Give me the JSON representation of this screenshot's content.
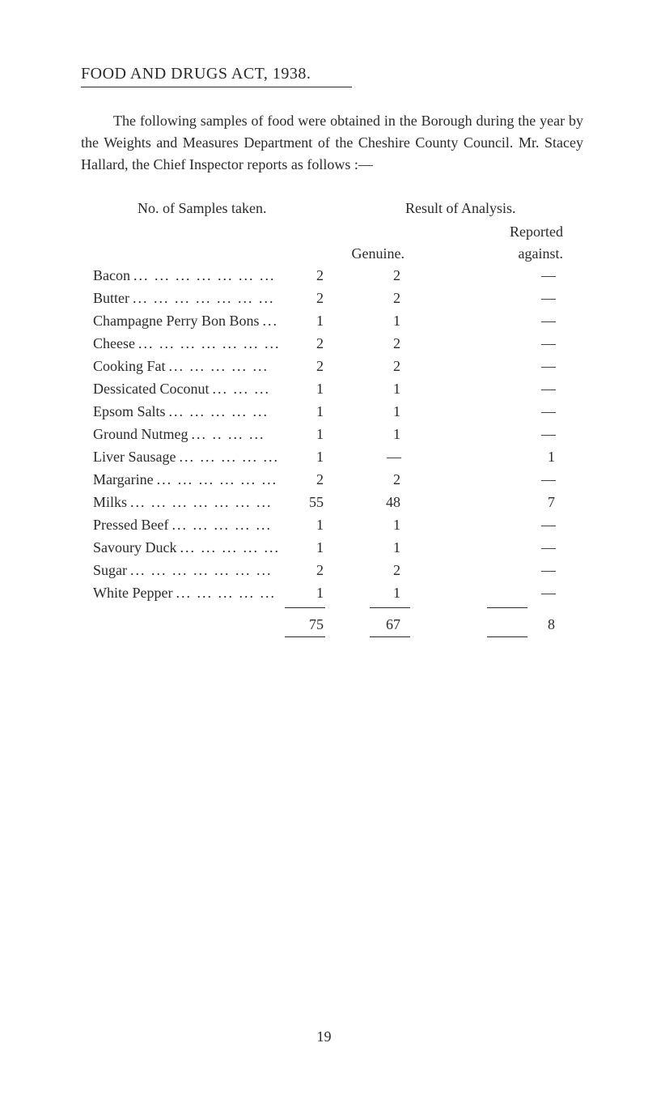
{
  "heading": "FOOD AND DRUGS ACT, 1938.",
  "intro": "The following samples of food were obtained in the Borough during the year by the Weights and Measures Department of the Cheshire County Council. Mr. Stacey Hallard, the Chief Inspector reports as follows :—",
  "samples_header": "No. of Samples taken.",
  "result_header": "Result of Analysis.",
  "reported_label": "Reported",
  "genuine_label": "Genuine.",
  "against_label": "against.",
  "items": [
    {
      "name": "Bacon",
      "samples": "2",
      "genuine": "2",
      "against": "—",
      "dots": "... ... ... ... ... ... ..."
    },
    {
      "name": "Butter",
      "samples": "2",
      "genuine": "2",
      "against": "—",
      "dots": "... ... ... ... ... ... ..."
    },
    {
      "name": "Champagne Perry Bon Bons",
      "samples": "1",
      "genuine": "1",
      "against": "—",
      "dots": "..."
    },
    {
      "name": "Cheese",
      "samples": "2",
      "genuine": "2",
      "against": "—",
      "dots": "... ... ... ... ... ... ..."
    },
    {
      "name": "Cooking Fat",
      "samples": "2",
      "genuine": "2",
      "against": "—",
      "dots": "... ... ... ... ..."
    },
    {
      "name": "Dessicated Coconut",
      "samples": "1",
      "genuine": "1",
      "against": "—",
      "dots": "... ... ..."
    },
    {
      "name": "Epsom Salts",
      "samples": "1",
      "genuine": "1",
      "against": "—",
      "dots": "... ... ... ... ..."
    },
    {
      "name": "Ground Nutmeg",
      "samples": "1",
      "genuine": "1",
      "against": "—",
      "dots": "... .. ... ..."
    },
    {
      "name": "Liver Sausage",
      "samples": "1",
      "genuine": "—",
      "against": "1",
      "dots": "... ... ... ... ..."
    },
    {
      "name": "Margarine",
      "samples": "2",
      "genuine": "2",
      "against": "—",
      "dots": "... ... ... ... ... ..."
    },
    {
      "name": "Milks",
      "samples": "55",
      "genuine": "48",
      "against": "7",
      "dots": "... ... ... ... ... ... ..."
    },
    {
      "name": "Pressed Beef",
      "samples": "1",
      "genuine": "1",
      "against": "—",
      "dots": "... ... ... ... ..."
    },
    {
      "name": "Savoury Duck",
      "samples": "1",
      "genuine": "1",
      "against": "—",
      "dots": "... ... ... ... ..."
    },
    {
      "name": "Sugar",
      "samples": "2",
      "genuine": "2",
      "against": "—",
      "dots": "... ... ... ... ... ... ..."
    },
    {
      "name": "White Pepper",
      "samples": "1",
      "genuine": "1",
      "against": "—",
      "dots": "... ... ... ... ..."
    }
  ],
  "totals": {
    "samples": "75",
    "genuine": "67",
    "against": "8"
  },
  "page_number": "19",
  "colors": {
    "text": "#2a2a2a",
    "background": "#ffffff"
  },
  "fonts": {
    "body": "Georgia, 'Times New Roman', serif",
    "body_size": 18,
    "heading_size": 20
  }
}
